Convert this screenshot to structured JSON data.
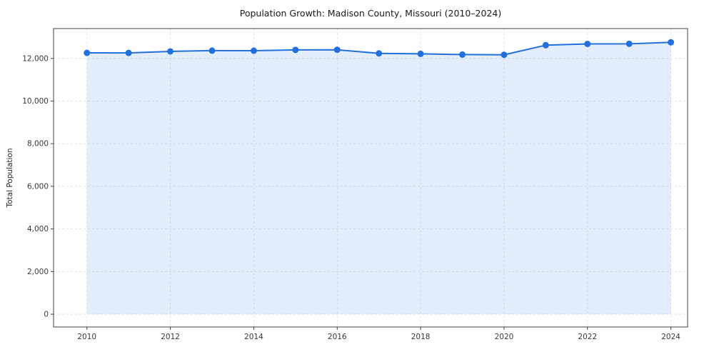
{
  "chart_data": {
    "type": "line",
    "title": "Population Growth: Madison County, Missouri (2010–2024)",
    "xlabel": "",
    "ylabel": "Total Population",
    "x": [
      2010,
      2011,
      2012,
      2013,
      2014,
      2015,
      2016,
      2017,
      2018,
      2019,
      2020,
      2021,
      2022,
      2023,
      2024
    ],
    "series": [
      {
        "name": "Total Population",
        "values": [
          12260,
          12255,
          12330,
          12365,
          12360,
          12400,
          12405,
          12235,
          12215,
          12180,
          12170,
          12620,
          12680,
          12685,
          12755
        ]
      }
    ],
    "xlim": [
      2009.2,
      2024.4
    ],
    "ylim": [
      -600,
      13400
    ],
    "xticks": [
      2010,
      2012,
      2014,
      2016,
      2018,
      2020,
      2022,
      2024
    ],
    "yticks": [
      0,
      2000,
      4000,
      6000,
      8000,
      10000,
      12000
    ],
    "grid": true,
    "grid_style": "dashed",
    "legend": "none",
    "marker": "circle",
    "area_fill_to": 0,
    "colors": {
      "line": "#2170dd",
      "marker": "#2170dd",
      "area_fill": "#2170dd",
      "area_opacity": 0.12,
      "grid": "#dcdcdc",
      "spine": "#404040",
      "tick_text": "#3a3a3a",
      "background": "#ffffff"
    }
  }
}
